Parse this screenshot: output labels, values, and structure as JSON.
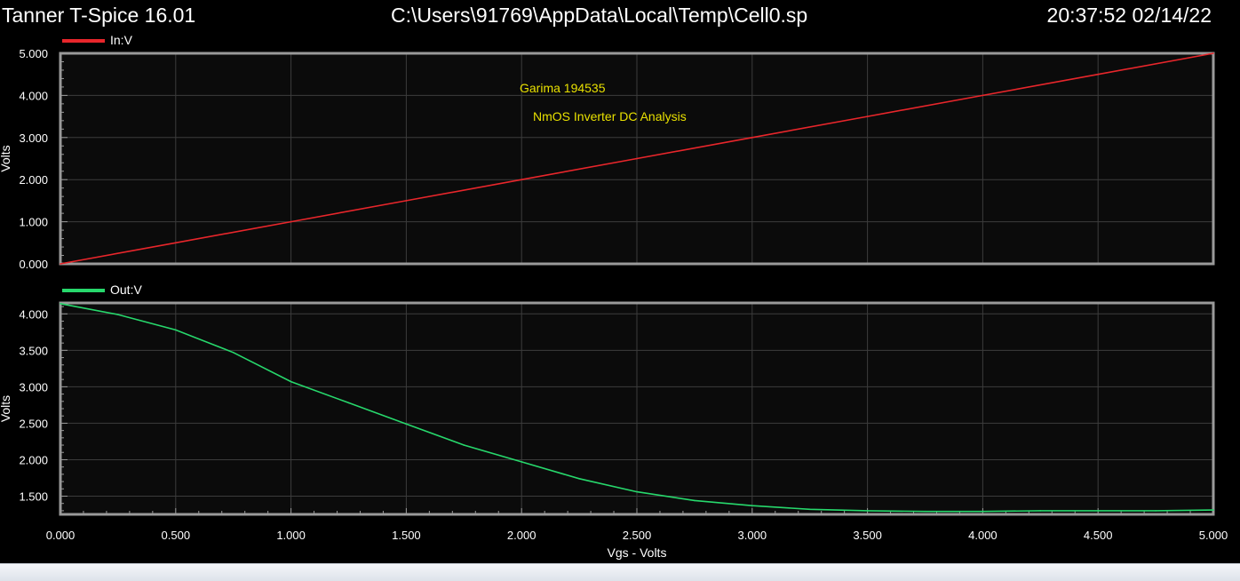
{
  "window": {
    "app_title": "Tanner T-Spice 16.01",
    "file_path": "C:\\Users\\91769\\AppData\\Local\\Temp\\Cell0.sp",
    "timestamp": "20:37:52 02/14/22"
  },
  "colors": {
    "background": "#000000",
    "plot_background": "#0b0b0b",
    "frame": "#9a9a9a",
    "grid": "#3c3c3c",
    "text": "#ffffff",
    "annotation": "#e8e000",
    "in_series": "#e8262b",
    "out_series": "#27d86c"
  },
  "chart_data": [
    {
      "type": "line",
      "title": "",
      "xlabel": "",
      "ylabel": "Volts",
      "xlim": [
        0,
        5
      ],
      "ylim": [
        0,
        5
      ],
      "x_ticks": [
        0,
        0.5,
        1,
        1.5,
        2,
        2.5,
        3,
        3.5,
        4,
        4.5,
        5
      ],
      "y_ticks": [
        0,
        1,
        2,
        3,
        4,
        5
      ],
      "y_tick_labels": [
        "0.000",
        "1.000",
        "2.000",
        "3.000",
        "4.000",
        "5.000"
      ],
      "grid": true,
      "legend": "top-left",
      "annotations": [
        "Garima 194535",
        "NmOS Inverter DC Analysis"
      ],
      "series": [
        {
          "name": "In:V",
          "color": "#e8262b",
          "x": [
            0,
            0.5,
            1,
            1.5,
            2,
            2.5,
            3,
            3.5,
            4,
            4.5,
            5
          ],
          "y": [
            0,
            0.5,
            1,
            1.5,
            2,
            2.5,
            3,
            3.5,
            4,
            4.5,
            5
          ]
        }
      ]
    },
    {
      "type": "line",
      "title": "",
      "xlabel": "Vgs - Volts",
      "ylabel": "Volts",
      "xlim": [
        0,
        5
      ],
      "ylim": [
        1.25,
        4.15
      ],
      "x_ticks": [
        0,
        0.5,
        1,
        1.5,
        2,
        2.5,
        3,
        3.5,
        4,
        4.5,
        5
      ],
      "x_tick_labels": [
        "0.000",
        "0.500",
        "1.000",
        "1.500",
        "2.000",
        "2.500",
        "3.000",
        "3.500",
        "4.000",
        "4.500",
        "5.000"
      ],
      "y_ticks": [
        1.5,
        2,
        2.5,
        3,
        3.5,
        4
      ],
      "y_tick_labels": [
        "1.500",
        "2.000",
        "2.500",
        "3.000",
        "3.500",
        "4.000"
      ],
      "grid": true,
      "legend": "top-left",
      "series": [
        {
          "name": "Out:V",
          "color": "#27d86c",
          "x": [
            0,
            0.25,
            0.5,
            0.75,
            1,
            1.25,
            1.5,
            1.75,
            2,
            2.25,
            2.5,
            2.75,
            3,
            3.25,
            3.5,
            3.75,
            4,
            4.25,
            4.5,
            4.75,
            5
          ],
          "y": [
            4.14,
            3.99,
            3.78,
            3.47,
            3.07,
            2.78,
            2.49,
            2.2,
            1.97,
            1.74,
            1.56,
            1.44,
            1.37,
            1.32,
            1.3,
            1.29,
            1.29,
            1.3,
            1.3,
            1.3,
            1.31
          ]
        }
      ]
    }
  ]
}
